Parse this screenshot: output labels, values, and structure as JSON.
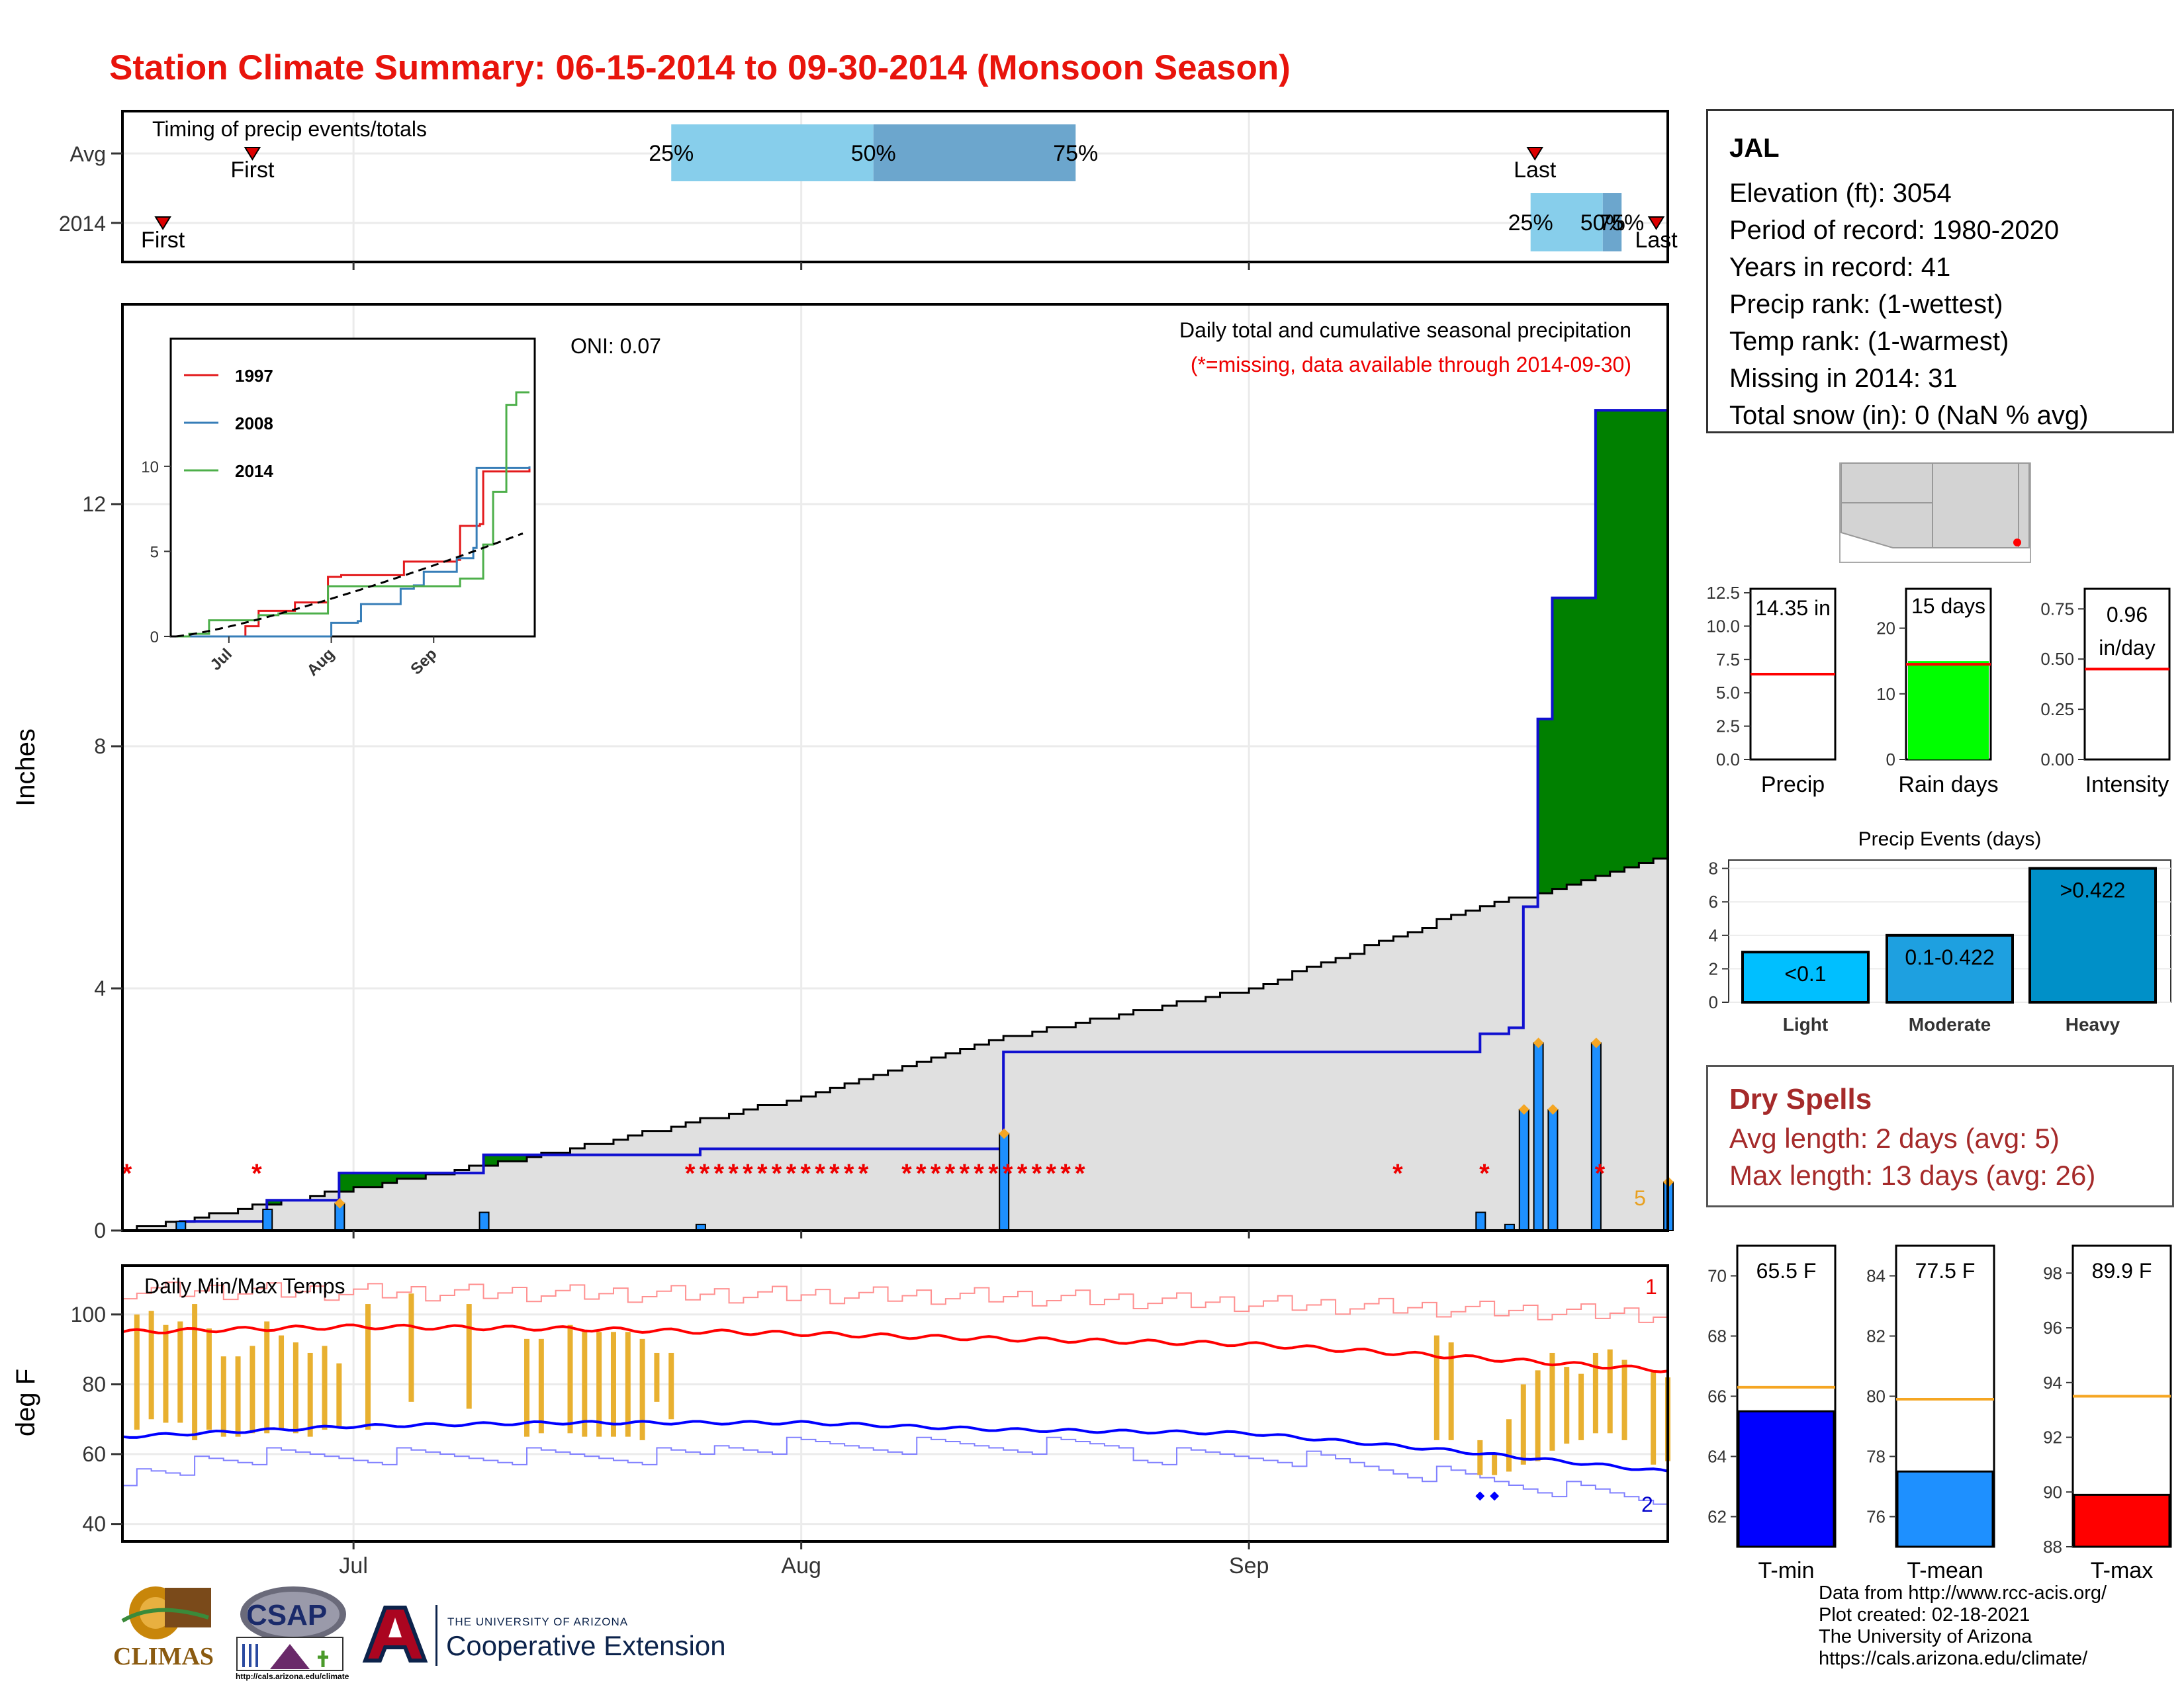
{
  "title": "Station Climate Summary: 06-15-2014 to 09-30-2014 (Monsoon Season)",
  "timing": {
    "label": "Timing of precip events/totals",
    "row_labels": [
      "Avg",
      "2014"
    ],
    "avg": {
      "first": "First",
      "last": "Last",
      "q25": "25%",
      "q50": "50%",
      "q75": "75%"
    },
    "year": {
      "first": "First",
      "last": "Last",
      "q25": "25%",
      "q50": "50%",
      "q75": "75%"
    }
  },
  "main": {
    "oni": "ONI: 0.07",
    "caption1": "Daily total and cumulative seasonal precipitation",
    "caption2": "(*=missing, data available through 2014-09-30)",
    "ylabel": "Inches",
    "count_label": "5",
    "yticks": [
      "0",
      "4",
      "8",
      "12"
    ]
  },
  "inset": {
    "legend": [
      "1997",
      "2008",
      "2014"
    ],
    "legend_colors": [
      "#e31a1c",
      "#377eb8",
      "#4daf4a"
    ],
    "yticks": [
      "0",
      "5",
      "10"
    ],
    "xticks": [
      "Jul",
      "Aug",
      "Sep"
    ]
  },
  "temps": {
    "label": "Daily Min/Max Temps",
    "ylabel": "deg F",
    "yticks": [
      "40",
      "60",
      "80",
      "100"
    ],
    "record_hi": "1",
    "record_lo": "2"
  },
  "xticks": [
    "Jul",
    "Aug",
    "Sep"
  ],
  "station": {
    "name": "JAL",
    "lines": [
      "Elevation (ft): 3054",
      "Period of record: 1980-2020",
      "Years in record: 41",
      "Precip rank:  (1-wettest)",
      "Temp rank:  (1-warmest)",
      "Missing in 2014: 31",
      "Total snow (in): 0 (NaN % avg)"
    ]
  },
  "summary_bars": {
    "precip": {
      "label": "Precip",
      "value_text": "14.35 in",
      "yticks": [
        "0.0",
        "2.5",
        "5.0",
        "7.5",
        "10.0",
        "12.5"
      ]
    },
    "raindays": {
      "label": "Rain days",
      "value_text": "15 days",
      "yticks": [
        "0",
        "10",
        "20"
      ]
    },
    "intensity": {
      "label": "Intensity",
      "value_text1": "0.96",
      "value_text2": "in/day",
      "yticks": [
        "0.00",
        "0.25",
        "0.50",
        "0.75"
      ]
    }
  },
  "events": {
    "title": "Precip Events (days)",
    "categories": [
      "Light",
      "Moderate",
      "Heavy"
    ],
    "bar_labels": [
      "<0.1",
      "0.1-0.422",
      ">0.422"
    ],
    "yticks": [
      "0",
      "2",
      "4",
      "6",
      "8"
    ]
  },
  "dry_spells": {
    "title": "Dry Spells",
    "avg": "Avg length: 2 days (avg: 5)",
    "max": "Max length: 13 days (avg: 26)"
  },
  "temp_bars": {
    "tmin": {
      "label": "T-min",
      "value_text": "65.5 F",
      "yticks": [
        "62",
        "64",
        "66",
        "68",
        "70"
      ]
    },
    "tmean": {
      "label": "T-mean",
      "value_text": "77.5 F",
      "yticks": [
        "76",
        "78",
        "80",
        "82",
        "84"
      ]
    },
    "tmax": {
      "label": "T-max",
      "value_text": "89.9 F",
      "yticks": [
        "88",
        "90",
        "92",
        "94",
        "96",
        "98"
      ]
    }
  },
  "footer": [
    "Data from http://www.rcc-acis.org/",
    "Plot created: 02-18-2021",
    "The University of Arizona",
    "https://cals.arizona.edu/climate/"
  ],
  "logos": {
    "climas": "CLIMAS",
    "csap": "CSAP",
    "csap_url": "http://cals.arizona.edu/climate",
    "ua_line1": "THE UNIVERSITY OF ARIZONA",
    "ua_line2": "Cooperative Extension"
  },
  "colors": {
    "title": "#e8140c",
    "above_normal": "#008000",
    "below_normal": "#8b5a00",
    "normal_fill": "#e0e0e0",
    "daily_bar": "#1e90ff",
    "tmin": "#0000ff",
    "tmean": "#1e90ff",
    "tmax": "#ff0000",
    "rain_days": "#00ff00",
    "light": "#00bfff",
    "moderate": "#1ea0e0",
    "heavy": "#0090c8",
    "dry_spells": "#a52a2a",
    "avg_line": "#f5a623"
  },
  "chart_data": [
    {
      "type": "area",
      "title": "Daily total and cumulative seasonal precipitation",
      "ylabel": "Inches",
      "ylim": [
        0,
        15.3
      ],
      "x_range": [
        "2014-06-15",
        "2014-09-30"
      ],
      "series": [
        {
          "name": "2014 cumulative",
          "x": [
            "06-15",
            "06-19",
            "06-25",
            "06-30",
            "07-01",
            "07-05",
            "07-10",
            "07-15",
            "07-25",
            "07-31",
            "08-15",
            "08-31",
            "09-09",
            "09-10",
            "09-15",
            "09-17",
            "09-18",
            "09-19",
            "09-20",
            "09-21",
            "09-22",
            "09-25",
            "09-30"
          ],
          "values": [
            0,
            0.15,
            0.5,
            0.95,
            0.95,
            0.95,
            1.25,
            1.25,
            1.35,
            1.35,
            2.95,
            2.95,
            2.95,
            2.95,
            2.95,
            3.25,
            3.25,
            3.35,
            5.35,
            8.45,
            10.45,
            13.55,
            14.35
          ]
        },
        {
          "name": "Average cumulative",
          "x": [
            "06-15",
            "07-01",
            "07-15",
            "08-01",
            "08-15",
            "09-01",
            "09-15",
            "09-30"
          ],
          "values": [
            0,
            0.7,
            1.3,
            2.2,
            3.2,
            4.0,
            5.2,
            6.2
          ]
        }
      ]
    },
    {
      "type": "line",
      "title": "Daily Min/Max Temps",
      "ylabel": "deg F",
      "ylim": [
        35,
        114
      ],
      "x_range": [
        "2014-06-15",
        "2014-09-30"
      ],
      "series": [
        {
          "name": "Avg max",
          "x": [
            "06-15",
            "07-01",
            "07-15",
            "08-01",
            "08-15",
            "09-01",
            "09-15",
            "09-30"
          ],
          "values": [
            95,
            96.5,
            96,
            94.5,
            93,
            91.5,
            88,
            84
          ]
        },
        {
          "name": "Avg min",
          "x": [
            "06-15",
            "07-01",
            "07-15",
            "08-01",
            "08-15",
            "09-01",
            "09-15",
            "09-30"
          ],
          "values": [
            65,
            68,
            69,
            69,
            67,
            66,
            61,
            55
          ]
        }
      ]
    },
    {
      "type": "bar",
      "title": "Precip Events (days)",
      "categories": [
        "Light",
        "Moderate",
        "Heavy"
      ],
      "values": [
        3,
        4,
        8
      ],
      "ylim": [
        0,
        8.5
      ]
    },
    {
      "type": "bar",
      "categories": [
        "Precip",
        "Rain days",
        "Intensity"
      ],
      "values": [
        14.35,
        15,
        0.96
      ],
      "averages": [
        6.4,
        14.5,
        0.45
      ]
    },
    {
      "type": "bar",
      "categories": [
        "T-min",
        "T-mean",
        "T-max"
      ],
      "values": [
        65.5,
        77.5,
        89.9
      ],
      "averages": [
        66.3,
        79.9,
        93.5
      ]
    }
  ]
}
